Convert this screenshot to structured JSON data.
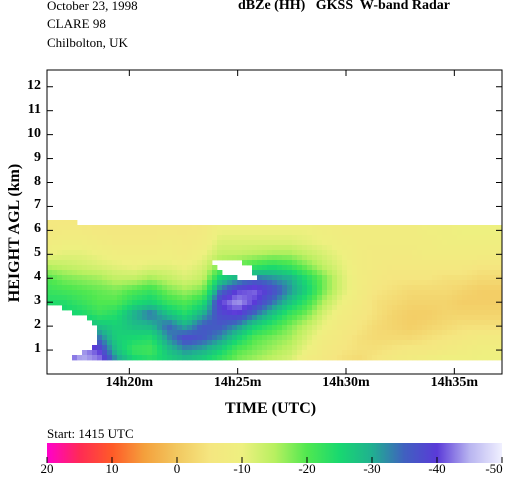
{
  "header": {
    "date": "October 23, 1998",
    "campaign": "CLARE 98",
    "location": "Chilbolton, UK",
    "title": "dBZe (HH)   GKSS  W-band Radar",
    "start": "Start: 1415 UTC"
  },
  "chart_data": {
    "type": "heatmap",
    "title": "dBZe (HH)   GKSS  W-band Radar",
    "xlabel": "TIME (UTC)",
    "ylabel": "HEIGHT AGL (km)",
    "x_unit": "minutes after 14h00m",
    "xlim": [
      16.2,
      37.2
    ],
    "ylim": [
      0,
      12.7
    ],
    "x_ticks": [
      {
        "value": 20,
        "label": "14h20m"
      },
      {
        "value": 25,
        "label": "14h25m"
      },
      {
        "value": 30,
        "label": "14h30m"
      },
      {
        "value": 35,
        "label": "14h35m"
      }
    ],
    "y_ticks": [
      {
        "value": 1,
        "label": "1"
      },
      {
        "value": 2,
        "label": "2"
      },
      {
        "value": 3,
        "label": "3"
      },
      {
        "value": 4,
        "label": "4"
      },
      {
        "value": 5,
        "label": "5"
      },
      {
        "value": 6,
        "label": "6"
      },
      {
        "value": 7,
        "label": "7"
      },
      {
        "value": 8,
        "label": "8"
      },
      {
        "value": 9,
        "label": "9"
      },
      {
        "value": 10,
        "label": "10"
      },
      {
        "value": 11,
        "label": "11"
      },
      {
        "value": 12,
        "label": "12"
      }
    ],
    "colorbar": {
      "unit": "dBZe",
      "range": [
        20,
        -50
      ],
      "ticks": [
        {
          "value": 20,
          "label": "20"
        },
        {
          "value": 10,
          "label": "10"
        },
        {
          "value": 0,
          "label": "0"
        },
        {
          "value": -10,
          "label": "-10"
        },
        {
          "value": -20,
          "label": "-20"
        },
        {
          "value": -30,
          "label": "-30"
        },
        {
          "value": -40,
          "label": "-40"
        },
        {
          "value": -50,
          "label": "-50"
        }
      ],
      "stops": [
        {
          "value": 20,
          "color": "#ff00cc"
        },
        {
          "value": 15,
          "color": "#ff2a55"
        },
        {
          "value": 10,
          "color": "#ff5a28"
        },
        {
          "value": 5,
          "color": "#f4a03c"
        },
        {
          "value": 0,
          "color": "#f2c860"
        },
        {
          "value": -5,
          "color": "#f5e680"
        },
        {
          "value": -10,
          "color": "#eef080"
        },
        {
          "value": -15,
          "color": "#b8f060"
        },
        {
          "value": -20,
          "color": "#50e850"
        },
        {
          "value": -25,
          "color": "#18d870"
        },
        {
          "value": -30,
          "color": "#20b090"
        },
        {
          "value": -35,
          "color": "#4060c0"
        },
        {
          "value": -40,
          "color": "#5a3ad8"
        },
        {
          "value": -45,
          "color": "#b8b4f0"
        },
        {
          "value": -50,
          "color": "#f0f0ff"
        }
      ]
    },
    "grid": [
      [
        16.2,
        [
          -31,
          -32,
          -30,
          -30,
          -27,
          -24,
          -22,
          -20,
          -15,
          -10,
          -8,
          -6,
          -6
        ]
      ],
      [
        17.0,
        [
          -40,
          -38,
          -34,
          -28,
          -26,
          -24,
          -21,
          -18,
          -14,
          -11,
          -9,
          -7,
          -6
        ]
      ],
      [
        17.8,
        [
          -45,
          -44,
          -38,
          -30,
          -25,
          -22,
          -20,
          -17,
          -13,
          -11,
          -9,
          -7,
          -6
        ]
      ],
      [
        18.6,
        [
          -43,
          -40,
          -34,
          -28,
          -22,
          -20,
          -19,
          -16,
          -12,
          -10,
          -8,
          -6,
          -5
        ]
      ],
      [
        19.4,
        [
          -32,
          -28,
          -26,
          -26,
          -24,
          -20,
          -18,
          -14,
          -11,
          -9,
          -7,
          -6,
          -5
        ]
      ],
      [
        20.2,
        [
          -26,
          -22,
          -25,
          -28,
          -30,
          -24,
          -20,
          -14,
          -10,
          -9,
          -7,
          -6,
          -5
        ]
      ],
      [
        21.0,
        [
          -24,
          -21,
          -24,
          -29,
          -34,
          -26,
          -22,
          -16,
          -11,
          -9,
          -7,
          -6,
          -5
        ]
      ],
      [
        21.8,
        [
          -26,
          -28,
          -32,
          -35,
          -28,
          -22,
          -18,
          -14,
          -11,
          -9,
          -8,
          -6,
          -5
        ]
      ],
      [
        22.6,
        [
          -28,
          -32,
          -38,
          -30,
          -24,
          -20,
          -16,
          -12,
          -10,
          -8,
          -7,
          -6,
          -5
        ]
      ],
      [
        23.4,
        [
          -26,
          -30,
          -36,
          -36,
          -30,
          -24,
          -18,
          -14,
          -12,
          -10,
          -8,
          -7,
          -6
        ]
      ],
      [
        24.2,
        [
          -22,
          -26,
          -32,
          -36,
          -38,
          -40,
          -34,
          -26,
          -18,
          -14,
          -12,
          -10,
          -9
        ]
      ],
      [
        25.0,
        [
          -18,
          -20,
          -26,
          -32,
          -40,
          -44,
          -40,
          -30,
          -20,
          -14,
          -12,
          -10,
          -9
        ]
      ],
      [
        25.8,
        [
          -16,
          -18,
          -20,
          -26,
          -34,
          -40,
          -42,
          -34,
          -22,
          -15,
          -12,
          -10,
          -9
        ]
      ],
      [
        26.6,
        [
          -14,
          -16,
          -18,
          -22,
          -28,
          -34,
          -38,
          -32,
          -24,
          -16,
          -12,
          -10,
          -9
        ]
      ],
      [
        27.4,
        [
          -12,
          -14,
          -16,
          -18,
          -22,
          -28,
          -32,
          -30,
          -22,
          -16,
          -12,
          -10,
          -9
        ]
      ],
      [
        28.2,
        [
          -8,
          -10,
          -12,
          -14,
          -18,
          -22,
          -26,
          -24,
          -18,
          -14,
          -11,
          -10,
          -9
        ]
      ],
      [
        29.0,
        [
          -6,
          -7,
          -8,
          -10,
          -12,
          -15,
          -18,
          -18,
          -14,
          -12,
          -10,
          -9,
          -8
        ]
      ],
      [
        29.8,
        [
          -4,
          -5,
          -6,
          -7,
          -8,
          -10,
          -12,
          -12,
          -11,
          -10,
          -9,
          -8,
          -8
        ]
      ],
      [
        30.6,
        [
          -3,
          -4,
          -4,
          -5,
          -6,
          -7,
          -8,
          -8,
          -8,
          -8,
          -8,
          -8,
          -8
        ]
      ],
      [
        31.4,
        [
          -5,
          -4,
          -3,
          -3,
          -4,
          -4,
          -5,
          -6,
          -7,
          -7,
          -8,
          -8,
          -8
        ]
      ],
      [
        32.2,
        [
          -7,
          -5,
          -3,
          -2,
          -2,
          -3,
          -4,
          -5,
          -6,
          -7,
          -8,
          -8,
          -8
        ]
      ],
      [
        33.0,
        [
          -8,
          -6,
          -3,
          -1,
          -1,
          -2,
          -3,
          -5,
          -6,
          -7,
          -8,
          -8,
          -8
        ]
      ],
      [
        33.8,
        [
          -9,
          -6,
          -4,
          -2,
          -1,
          -2,
          -3,
          -5,
          -6,
          -8,
          -8,
          -9,
          -9
        ]
      ],
      [
        34.6,
        [
          -10,
          -7,
          -5,
          -3,
          -2,
          -2,
          -3,
          -4,
          -6,
          -8,
          -9,
          -9,
          -9
        ]
      ],
      [
        35.4,
        [
          -10,
          -8,
          -6,
          -4,
          -2,
          -1,
          -2,
          -4,
          -6,
          -8,
          -9,
          -10,
          -10
        ]
      ],
      [
        36.2,
        [
          -10,
          -9,
          -7,
          -4,
          -2,
          -1,
          -1,
          -3,
          -5,
          -8,
          -9,
          -10,
          -10
        ]
      ],
      [
        37.2,
        [
          -10,
          -9,
          -7,
          -4,
          -2,
          -1,
          -1,
          -3,
          -5,
          -8,
          -9,
          -10,
          -10
        ]
      ]
    ],
    "grid_heights_km": [
      0.6,
      1.0,
      1.5,
      2.0,
      2.5,
      3.0,
      3.5,
      4.0,
      4.5,
      5.0,
      5.5,
      6.0,
      6.2
    ],
    "echo_top_km": [
      [
        16.2,
        6.45
      ],
      [
        17.0,
        6.4
      ],
      [
        17.8,
        6.3
      ],
      [
        18.6,
        6.25
      ],
      [
        19.4,
        6.2
      ],
      [
        20.2,
        6.2
      ],
      [
        21.0,
        6.22
      ],
      [
        22.0,
        6.25
      ],
      [
        23.0,
        6.25
      ],
      [
        24.0,
        6.25
      ],
      [
        25.0,
        6.25
      ],
      [
        26.0,
        6.22
      ],
      [
        27.0,
        6.2
      ],
      [
        28.0,
        6.2
      ],
      [
        29.0,
        6.2
      ],
      [
        30.0,
        6.2
      ],
      [
        31.0,
        6.2
      ],
      [
        32.0,
        6.2
      ],
      [
        33.0,
        6.2
      ],
      [
        34.0,
        6.18
      ],
      [
        35.0,
        6.2
      ],
      [
        36.0,
        6.2
      ],
      [
        37.2,
        6.2
      ]
    ],
    "echo_base_km": 0.6,
    "no_echo_regions": [
      {
        "name": "low-left-gap",
        "points": [
          [
            16.2,
            0.6
          ],
          [
            16.2,
            3.0
          ],
          [
            17.0,
            2.7
          ],
          [
            18.0,
            2.4
          ],
          [
            18.6,
            1.9
          ],
          [
            18.6,
            1.3
          ],
          [
            18.0,
            1.0
          ],
          [
            17.2,
            0.6
          ]
        ]
      },
      {
        "name": "mid-hole",
        "points": [
          [
            23.8,
            4.6
          ],
          [
            24.2,
            4.85
          ],
          [
            25.0,
            4.8
          ],
          [
            25.6,
            4.5
          ],
          [
            25.9,
            4.05
          ],
          [
            25.6,
            3.85
          ],
          [
            25.0,
            4.05
          ],
          [
            24.3,
            4.2
          ]
        ]
      }
    ]
  }
}
